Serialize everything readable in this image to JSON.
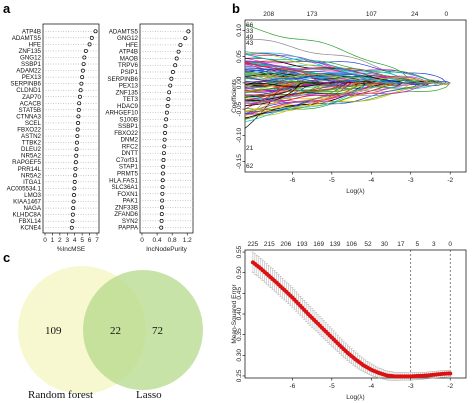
{
  "panel_labels": {
    "a": "a",
    "b": "b",
    "c": "c"
  },
  "chart_data": [
    {
      "type": "dot",
      "id": "a_mse",
      "xlabel": "%IncMSE",
      "xticks": [
        0,
        1,
        2,
        3,
        4,
        5,
        6,
        7
      ],
      "xlim": [
        0,
        7
      ],
      "categories": [
        "ATP4B",
        "ADAMTS5",
        "HFE",
        "ZNF135",
        "GNG12",
        "SSBP1",
        "ADAM22",
        "PEX13",
        "SERPINB6",
        "CLDND1",
        "ZAP70",
        "ACACB",
        "STAT5B",
        "CTNNA3",
        "SCEL",
        "FBXO22",
        "ASTN2",
        "TTBK2",
        "DLEU2",
        "NR5A2",
        "RAPGEF5",
        "PRR14L",
        "NR5A2",
        "ITGA1",
        "AC005534.1",
        "LMO3",
        "KIAA1467",
        "NAGA",
        "KLHDC8A",
        "FBXL14",
        "KCNE4"
      ],
      "values": [
        6.8,
        6.3,
        6.0,
        5.5,
        5.3,
        5.2,
        5.1,
        5.0,
        4.9,
        4.8,
        4.7,
        4.6,
        4.55,
        4.5,
        4.45,
        4.4,
        4.35,
        4.3,
        4.25,
        4.2,
        4.15,
        4.1,
        4.05,
        4.0,
        3.95,
        3.9,
        3.85,
        3.8,
        3.75,
        3.7,
        3.6
      ]
    },
    {
      "type": "dot",
      "id": "a_purity",
      "xlabel": "IncNodePurity",
      "xticks": [
        0.0,
        0.4,
        0.8,
        1.2
      ],
      "xlim": [
        0,
        1.3
      ],
      "categories": [
        "ADAMTS5",
        "GNG12",
        "HFE",
        "ATP4B",
        "MAOB",
        "TRPV6",
        "PSIP1",
        "SERPINB6",
        "PEX13",
        "ZNF135",
        "TET3",
        "HDAC9",
        "ARHGEF10",
        "S100B",
        "SSBP1",
        "FBXO22",
        "DNM2",
        "RFC2",
        "DNTT",
        "C7orf31",
        "STAP1",
        "PRMT5",
        "HLA.FAS1",
        "SLC36A1",
        "FOXN1",
        "PAK1",
        "ZNF33B",
        "ZFAND6",
        "SYN2",
        "PAPPA"
      ],
      "values": [
        1.23,
        1.15,
        1.02,
        0.97,
        0.92,
        0.88,
        0.82,
        0.78,
        0.75,
        0.72,
        0.7,
        0.68,
        0.66,
        0.64,
        0.62,
        0.61,
        0.6,
        0.59,
        0.58,
        0.57,
        0.56,
        0.555,
        0.55,
        0.545,
        0.54,
        0.535,
        0.53,
        0.525,
        0.52,
        0.51
      ]
    },
    {
      "type": "line",
      "id": "b_coef",
      "ylabel": "Coefficients",
      "xlabel": "Log(λ)",
      "xticks": [
        -6,
        -5,
        -4,
        -3,
        -2
      ],
      "yticks": [
        -0.15,
        -0.1,
        -0.05,
        0.0,
        0.05,
        0.1
      ],
      "xlim": [
        -7.2,
        -1.6
      ],
      "ylim": [
        -0.17,
        0.12
      ],
      "top_ticks": [
        "208",
        "173",
        "107",
        "24",
        "0"
      ],
      "left_labels_top": [
        "66",
        "33",
        "49",
        "43"
      ],
      "left_labels_bottom": [
        "21",
        "62"
      ],
      "n_series": 120
    },
    {
      "type": "scatter",
      "id": "b_cv",
      "ylabel": "Mean-Squared Error",
      "xlabel": "Log(λ)",
      "xticks": [
        -6,
        -5,
        -4,
        -3,
        -2
      ],
      "yticks": [
        0.25,
        0.3,
        0.35,
        0.4,
        0.45,
        0.5,
        0.55
      ],
      "xlim": [
        -7.2,
        -1.6
      ],
      "ylim": [
        0.245,
        0.555
      ],
      "top_ticks": [
        "225",
        "215",
        "206",
        "193",
        "169",
        "139",
        "106",
        "52",
        "30",
        "17",
        "5",
        "3",
        "0"
      ],
      "vlines": [
        -3.0,
        -2.0
      ],
      "curve": [
        [
          -7.0,
          0.525
        ],
        [
          -6.8,
          0.51
        ],
        [
          -6.6,
          0.493
        ],
        [
          -6.4,
          0.476
        ],
        [
          -6.2,
          0.458
        ],
        [
          -6.0,
          0.44
        ],
        [
          -5.8,
          0.42
        ],
        [
          -5.6,
          0.4
        ],
        [
          -5.4,
          0.381
        ],
        [
          -5.2,
          0.362
        ],
        [
          -5.0,
          0.343
        ],
        [
          -4.8,
          0.324
        ],
        [
          -4.6,
          0.306
        ],
        [
          -4.4,
          0.29
        ],
        [
          -4.2,
          0.276
        ],
        [
          -4.0,
          0.265
        ],
        [
          -3.8,
          0.257
        ],
        [
          -3.6,
          0.251
        ],
        [
          -3.4,
          0.249
        ],
        [
          -3.2,
          0.249
        ],
        [
          -3.0,
          0.249
        ],
        [
          -2.8,
          0.25
        ],
        [
          -2.6,
          0.251
        ],
        [
          -2.4,
          0.253
        ],
        [
          -2.2,
          0.255
        ],
        [
          -2.0,
          0.256
        ]
      ],
      "err": [
        0.025,
        0.025,
        0.025,
        0.025,
        0.024,
        0.024,
        0.023,
        0.023,
        0.022,
        0.022,
        0.021,
        0.02,
        0.019,
        0.018,
        0.016,
        0.014,
        0.012,
        0.011,
        0.01,
        0.009,
        0.009,
        0.009,
        0.008,
        0.008,
        0.008,
        0.008
      ]
    }
  ],
  "venn": {
    "left_count": "109",
    "overlap_count": "22",
    "right_count": "72",
    "left_name": "Random forest",
    "right_name": "Lasso",
    "left_color": "#f6f7c8",
    "right_color": "#b6d98a"
  },
  "colors": {
    "cv_line": "#dd1111",
    "cv_err": "#aaaaaa",
    "series_palette": [
      "#000000",
      "#e41a1c",
      "#1f3fe0",
      "#2ca02c",
      "#00bfbf",
      "#d01fd0",
      "#d4b800",
      "#888888"
    ]
  }
}
